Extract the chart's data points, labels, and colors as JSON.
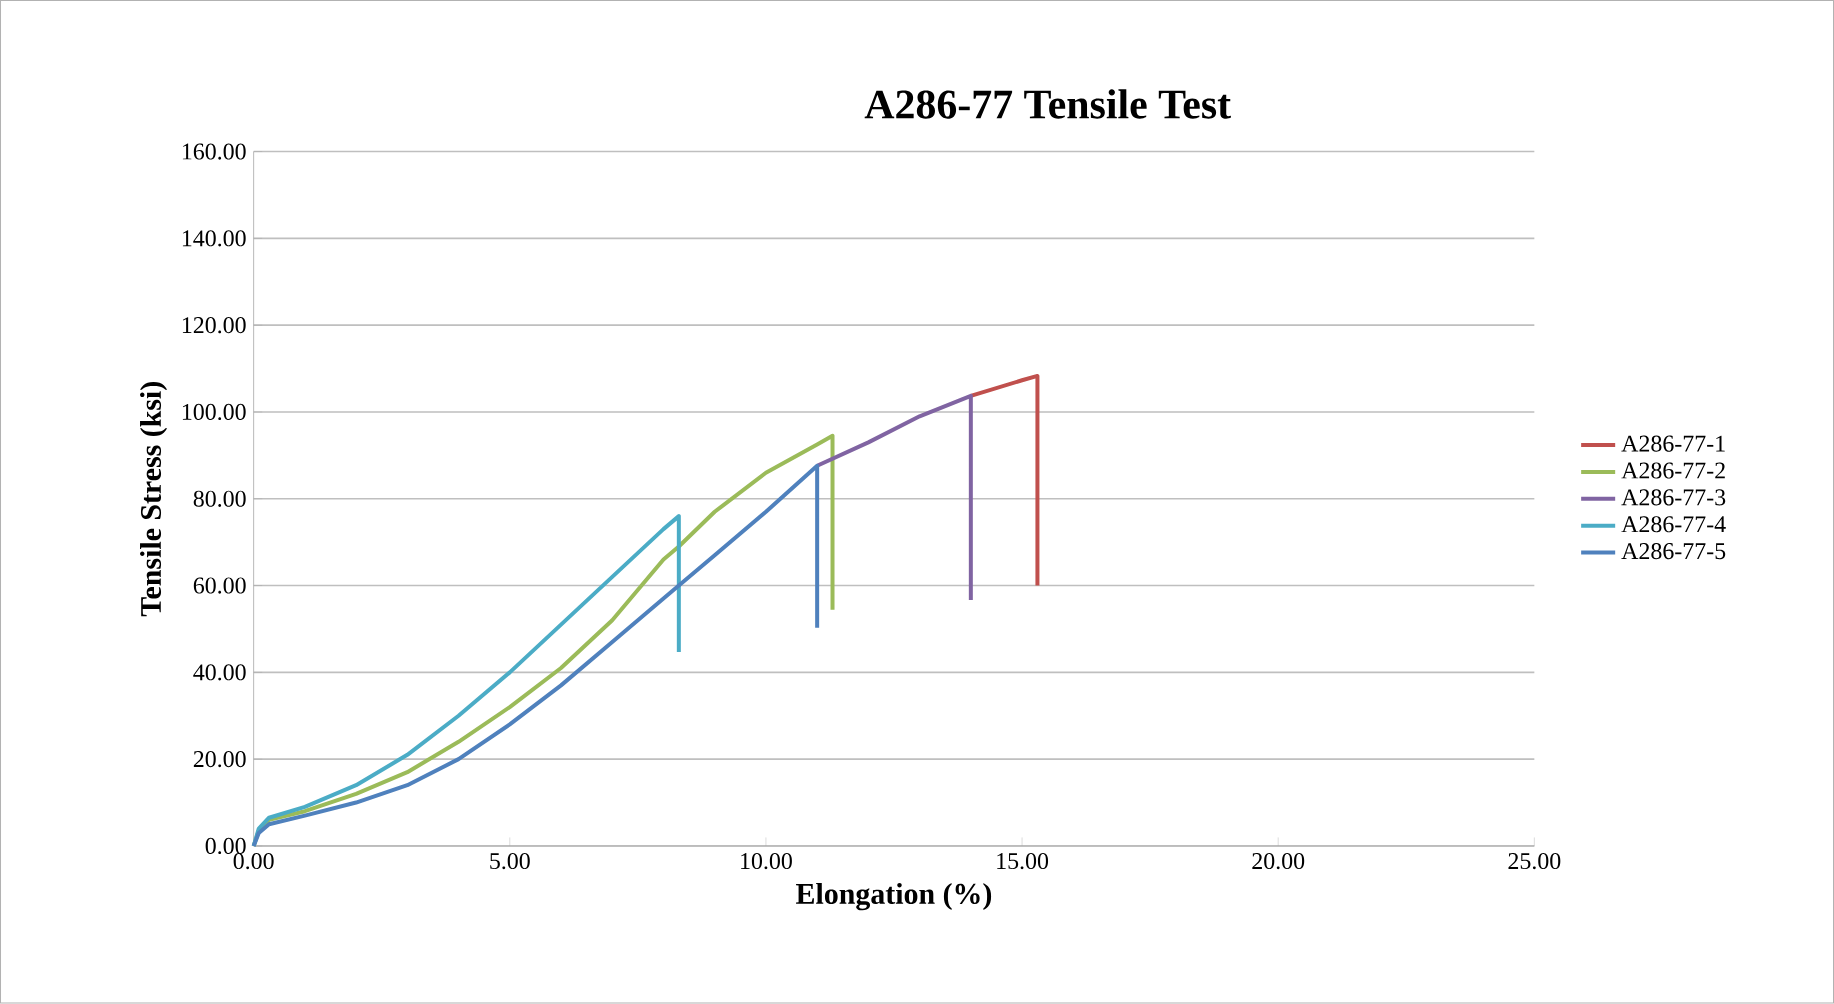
{
  "chart_data": {
    "type": "line",
    "title": "A286-77 Tensile Test",
    "xlabel": "Elongation (%)",
    "ylabel": "Tensile Stress (ksi)",
    "xlim": [
      0,
      25
    ],
    "ylim": [
      0,
      160
    ],
    "xticks": [
      {
        "value": 0,
        "label": "0.00"
      },
      {
        "value": 5,
        "label": "5.00"
      },
      {
        "value": 10,
        "label": "10.00"
      },
      {
        "value": 15,
        "label": "15.00"
      },
      {
        "value": 20,
        "label": "20.00"
      },
      {
        "value": 25,
        "label": "25.00"
      }
    ],
    "yticks": [
      {
        "value": 0,
        "label": "0.00"
      },
      {
        "value": 20,
        "label": "20.00"
      },
      {
        "value": 40,
        "label": "40.00"
      },
      {
        "value": 60,
        "label": "60.00"
      },
      {
        "value": 80,
        "label": "80.00"
      },
      {
        "value": 100,
        "label": "100.00"
      },
      {
        "value": 120,
        "label": "120.00"
      },
      {
        "value": 140,
        "label": "140.00"
      },
      {
        "value": 160,
        "label": "160.00"
      }
    ],
    "grid": "y",
    "legend": "right",
    "marker": "none",
    "line_style": "solid",
    "series": [
      {
        "name": "A286-77-1",
        "color": "#c0504d",
        "x": [
          14,
          15,
          15.3,
          15.3
        ],
        "values": [
          103.7,
          107.3,
          108.3,
          60
        ]
      },
      {
        "name": "A286-77-2",
        "color": "#9bbb59",
        "x": [
          0,
          0.1,
          0.3,
          1,
          2,
          3,
          4,
          5,
          6,
          7,
          8,
          8.3,
          9,
          10,
          11,
          11.3,
          11.3
        ],
        "values": [
          0,
          3.5,
          6,
          8,
          12,
          17,
          24,
          32,
          41,
          52,
          66,
          69,
          77,
          86,
          92.5,
          94.5,
          54.4
        ]
      },
      {
        "name": "A286-77-3",
        "color": "#8064a2",
        "x": [
          11,
          12,
          13,
          14,
          14
        ],
        "values": [
          87.6,
          93,
          99,
          103.7,
          56.7
        ]
      },
      {
        "name": "A286-77-4",
        "color": "#4bacc6",
        "x": [
          0,
          0.1,
          0.3,
          1,
          2,
          3,
          4,
          5,
          6,
          7,
          8,
          8.3,
          8.3
        ],
        "values": [
          0,
          4,
          6.5,
          9,
          14,
          21,
          30,
          40,
          51,
          62,
          73,
          76,
          44.7
        ]
      },
      {
        "name": "A286-77-5",
        "color": "#4f81bd",
        "x": [
          0,
          0.1,
          0.3,
          1,
          2,
          3,
          4,
          5,
          6,
          7,
          8,
          8.3,
          9,
          10,
          11,
          11
        ],
        "values": [
          0,
          3,
          5,
          7,
          10,
          14,
          20,
          28,
          37,
          47,
          57,
          60,
          67,
          77,
          87.6,
          50.3
        ]
      }
    ]
  }
}
